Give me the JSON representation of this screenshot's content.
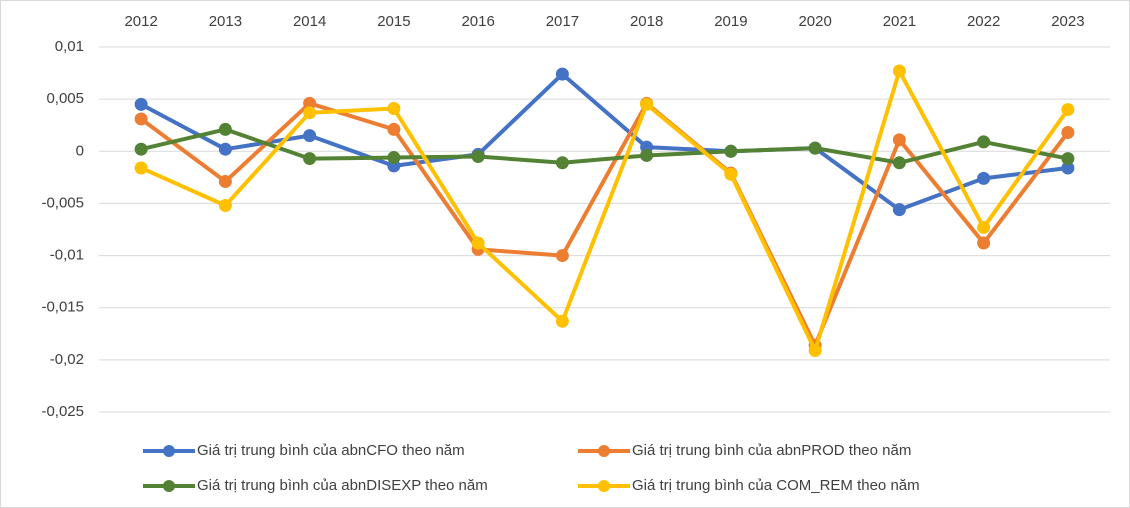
{
  "chart_data": {
    "type": "line",
    "categories": [
      "2012",
      "2013",
      "2014",
      "2015",
      "2016",
      "2017",
      "2018",
      "2019",
      "2020",
      "2021",
      "2022",
      "2023"
    ],
    "series": [
      {
        "name": "Giá trị trung bình của abnCFO theo năm",
        "color": "#4472c4",
        "values": [
          0.0045,
          0.0002,
          0.0015,
          -0.0014,
          -0.0003,
          0.0074,
          0.0004,
          0,
          0.0003,
          -0.0056,
          -0.0026,
          -0.0016
        ]
      },
      {
        "name": "Giá trị trung bình của abnPROD theo năm",
        "color": "#ed7d31",
        "values": [
          0.0031,
          -0.0029,
          0.0046,
          0.0021,
          -0.0094,
          -0.01,
          0.0046,
          -0.0021,
          -0.0186,
          0.0011,
          -0.0088,
          0.0018
        ]
      },
      {
        "name": "Giá trị trung bình của abnDISEXP theo năm",
        "color": "#548235",
        "values": [
          0.0002,
          0.0021,
          -0.0007,
          -0.0006,
          -0.0005,
          -0.0011,
          -0.0004,
          0,
          0.0003,
          -0.0011,
          0.0009,
          -0.0007
        ]
      },
      {
        "name": "Giá trị trung bình của COM_REM theo năm",
        "color": "#ffc000",
        "values": [
          -0.0016,
          -0.0052,
          0.0037,
          0.0041,
          -0.0088,
          -0.0163,
          0.0045,
          -0.0022,
          -0.0191,
          0.0077,
          -0.0073,
          0.004
        ]
      }
    ],
    "ylim": [
      -0.025,
      0.01
    ],
    "yticks": [
      {
        "value": -0.025,
        "label": "-0,025"
      },
      {
        "value": -0.02,
        "label": "-0,02"
      },
      {
        "value": -0.015,
        "label": "-0,015"
      },
      {
        "value": -0.01,
        "label": "-0,01"
      },
      {
        "value": -0.005,
        "label": "-0,005"
      },
      0,
      {
        "value": 0.005,
        "label": "0,005"
      },
      {
        "value": 0.01,
        "label": "0,01"
      }
    ],
    "grid": true,
    "legend": "bottom"
  }
}
